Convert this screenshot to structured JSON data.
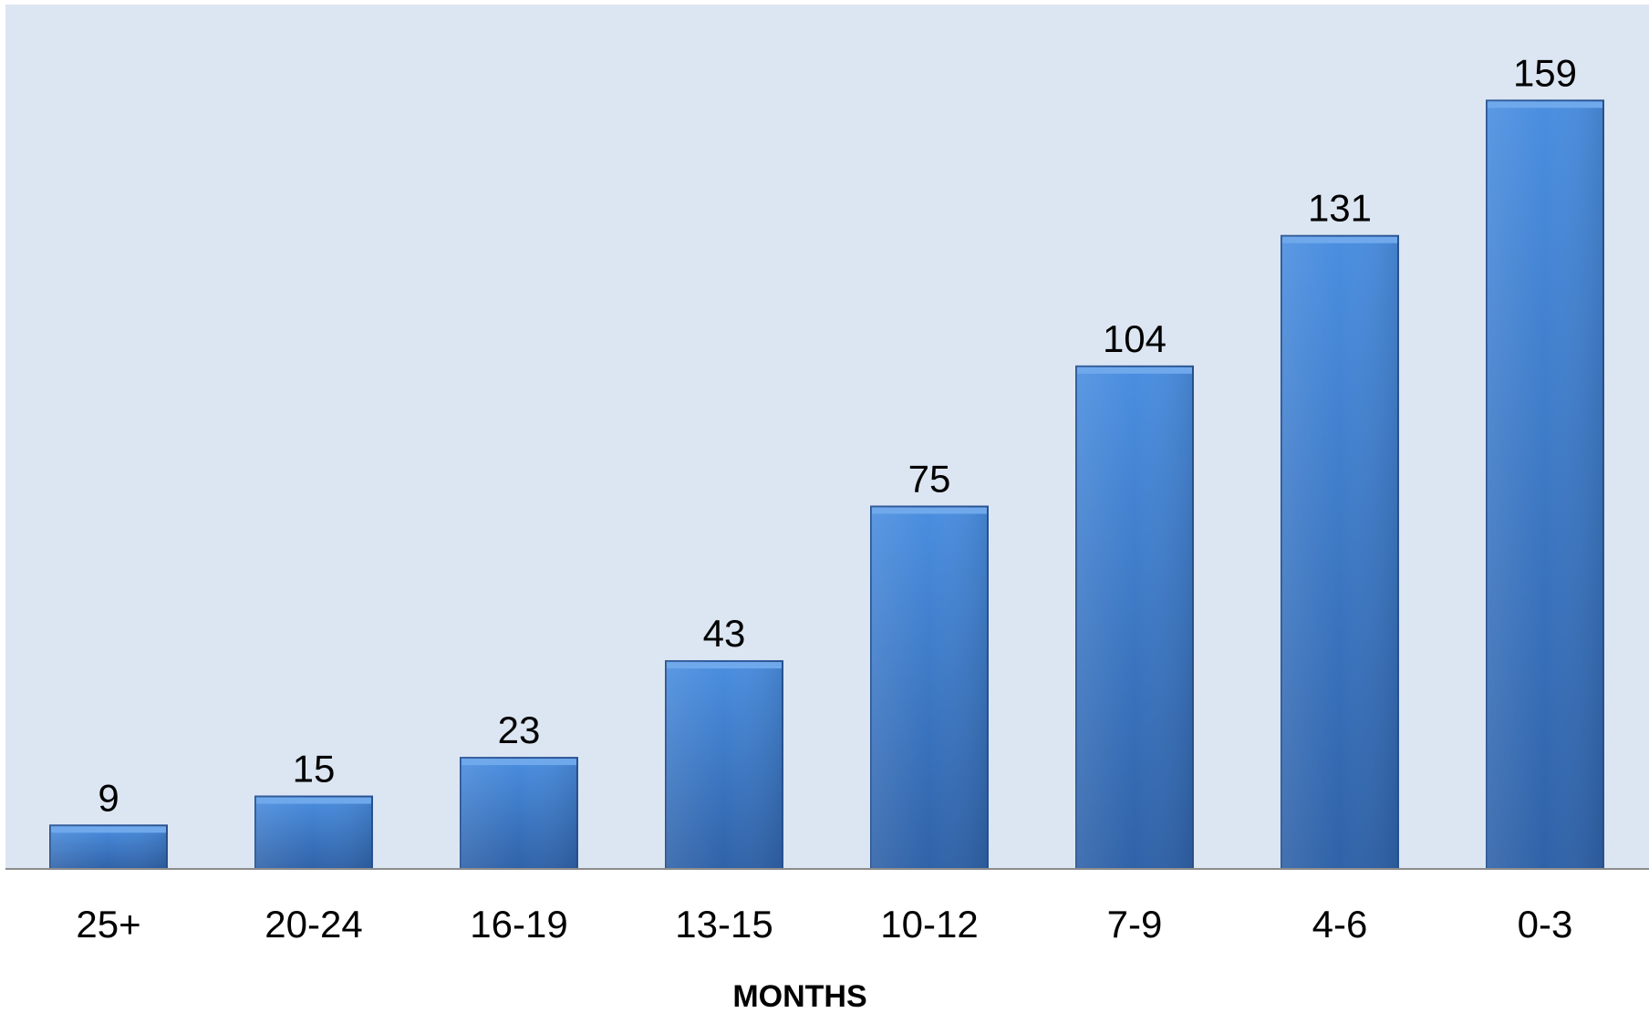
{
  "chart_data": {
    "type": "bar",
    "categories": [
      "25+",
      "20-24",
      "16-19",
      "13-15",
      "10-12",
      "7-9",
      "4-6",
      "0-3"
    ],
    "values": [
      9,
      15,
      23,
      43,
      75,
      104,
      131,
      159
    ],
    "data_labels": [
      "9",
      "15",
      "23",
      "43",
      "75",
      "104",
      "131",
      "159"
    ],
    "title": "",
    "xlabel": "MONTHS",
    "ylabel": "",
    "ylim": [
      0,
      180
    ],
    "grid": false,
    "legend": "none",
    "colors": {
      "plot_background": "#dce6f2",
      "bar_top": "#4a8ee0",
      "bar_bottom": "#2f62a8",
      "bar_edge": "#2a5596",
      "axis_line": "#8c8c8c"
    }
  }
}
